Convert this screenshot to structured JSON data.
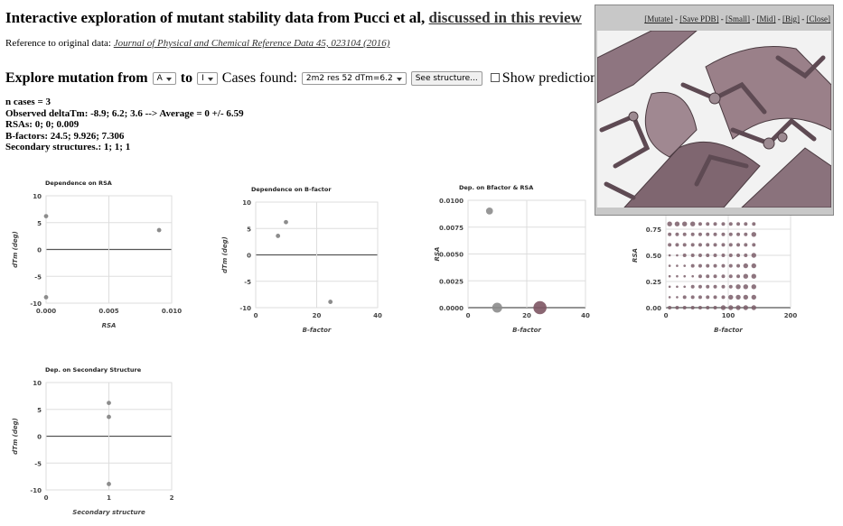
{
  "header": {
    "title": "Interactive exploration of mutant stability data from Pucci et al,",
    "link": "discussed in this review"
  },
  "reference": {
    "label": "Reference to original data:",
    "link": "Journal of Physical and Chemical Reference Data 45, 023104 (2016)"
  },
  "controls": {
    "explore_label": "Explore mutation from",
    "from": "A",
    "to_label": "to",
    "to": "I",
    "cases_label": "Cases found:",
    "case": "2m2 res 52 dTm=6.2",
    "button": "See structure...",
    "checkbox": "Show predictions"
  },
  "stats": [
    "n cases = 3",
    "Observed deltaTm: -8.9; 6.2; 3.6 --> Average = 0 +/- 6.59",
    "RSAs: 0; 0; 0.009",
    "B-factors: 24.5; 9.926; 7.306",
    "Secondary structures.: 1; 1; 1"
  ],
  "viewer": {
    "links": [
      "[Mutate]",
      "[Save PDB]",
      "[Small]",
      "[Mid]",
      "[Big]",
      "[Close]"
    ],
    "separator": " - "
  },
  "chart_data": [
    {
      "type": "scatter",
      "title": "Dependence on RSA",
      "x_label": "RSA",
      "y_label": "dTm (deg)",
      "x": [
        0,
        0,
        0.009
      ],
      "y": [
        -8.9,
        6.2,
        3.6
      ],
      "color": "#8c8c8c",
      "xlim": [
        0,
        0.01
      ],
      "xticks": [
        {
          "value": 0,
          "label": "0.000"
        },
        {
          "value": 0.005,
          "label": "0.005"
        },
        {
          "value": 0.01,
          "label": "0.010"
        }
      ],
      "ylim": [
        -10,
        10
      ],
      "yticks": [
        -10,
        -5,
        0,
        5,
        10
      ],
      "grid": true
    },
    {
      "type": "scatter",
      "title": "Dependence on B-factor",
      "x_label": "B-factor",
      "y_label": "dTm (deg)",
      "x": [
        24.5,
        9.926,
        7.306
      ],
      "y": [
        -8.9,
        6.2,
        3.6
      ],
      "color": "#8c8c8c",
      "xlim": [
        0,
        40
      ],
      "xticks": [
        0,
        20,
        40
      ],
      "ylim": [
        -10,
        10
      ],
      "yticks": [
        -10,
        -5,
        0,
        5,
        10
      ],
      "grid": true
    },
    {
      "type": "bubble",
      "title": "Dep. on Bfactor & RSA",
      "x_label": "B-factor",
      "y_label": "RSA",
      "x": [
        24.5,
        9.926,
        7.306
      ],
      "y": [
        0,
        0,
        0.009
      ],
      "sizes": [
        -8.9,
        6.2,
        3.6
      ],
      "colors": [
        "#7d5563",
        "#8c8c8c",
        "#8c8c8c"
      ],
      "xlim": [
        0,
        40
      ],
      "xticks": [
        0,
        20,
        40
      ],
      "ylim": [
        0,
        0.01
      ],
      "yticks": [
        {
          "value": 0,
          "label": "0.0000"
        },
        {
          "value": 0.0025,
          "label": "0.0025"
        },
        {
          "value": 0.005,
          "label": "0.0050"
        },
        {
          "value": 0.0075,
          "label": "0.0075"
        },
        {
          "value": 0.01,
          "label": "0.0100"
        }
      ],
      "grid": true
    },
    {
      "type": "dotmatrix",
      "x_label": "B-factor",
      "y_label": "RSA",
      "color": "#7a5d69",
      "x": [
        6,
        18,
        30,
        43,
        55,
        67,
        79,
        92,
        104,
        116,
        128,
        141
      ],
      "y": [
        0,
        0.1,
        0.2,
        0.3,
        0.4,
        0.5,
        0.6,
        0.7,
        0.8
      ],
      "sizes": [
        [
          2,
          2,
          2,
          2,
          2,
          2,
          2,
          3,
          3,
          3,
          3,
          3
        ],
        [
          1,
          1,
          2,
          2,
          2,
          2,
          2,
          2,
          3,
          3,
          3,
          3
        ],
        [
          1,
          1,
          1,
          2,
          2,
          2,
          2,
          2,
          2,
          3,
          3,
          3
        ],
        [
          1,
          1,
          1,
          1,
          2,
          2,
          2,
          2,
          2,
          2,
          3,
          3
        ],
        [
          1,
          1,
          1,
          2,
          2,
          2,
          2,
          2,
          2,
          2,
          3,
          3
        ],
        [
          1,
          1,
          2,
          2,
          2,
          2,
          2,
          2,
          2,
          2,
          2,
          3
        ],
        [
          2,
          2,
          2,
          2,
          2,
          2,
          2,
          2,
          2,
          2,
          2,
          2
        ],
        [
          2,
          2,
          2,
          2,
          2,
          2,
          2,
          2,
          2,
          2,
          2,
          3
        ],
        [
          3,
          3,
          3,
          3,
          2,
          2,
          2,
          2,
          2,
          2,
          2,
          2
        ]
      ],
      "xlim": [
        0,
        200
      ],
      "xticks": [
        0,
        100,
        200
      ],
      "ylim": [
        0,
        1
      ],
      "yticks": [
        {
          "value": 0,
          "label": "0.00"
        },
        {
          "value": 0.25,
          "label": "0.25"
        },
        {
          "value": 0.5,
          "label": "0.50"
        },
        {
          "value": 0.75,
          "label": "0.75"
        }
      ],
      "grid": true
    },
    {
      "type": "scatter",
      "title": "Dep. on Secondary Structure",
      "x_label": "Secondary structure",
      "y_label": "dTm (deg)",
      "x": [
        1,
        1,
        1
      ],
      "y": [
        -8.9,
        6.2,
        3.6
      ],
      "color": "#8c8c8c",
      "xlim": [
        0,
        2
      ],
      "xticks": [
        0,
        1,
        2
      ],
      "ylim": [
        -10,
        10
      ],
      "yticks": [
        -10,
        -5,
        0,
        5,
        10
      ],
      "grid": true
    }
  ]
}
